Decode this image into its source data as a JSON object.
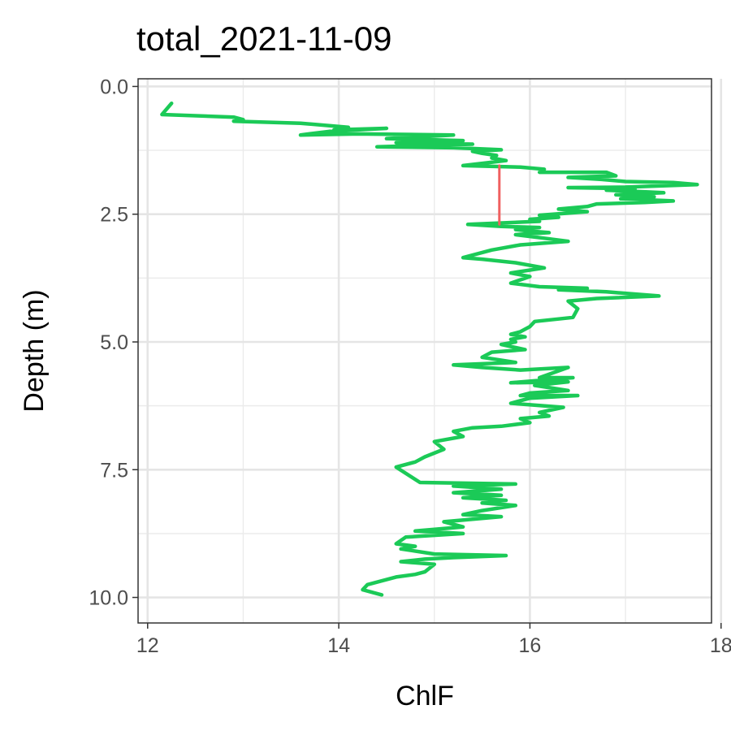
{
  "chart_data": {
    "type": "line",
    "title": "total_2021-11-09",
    "xlabel": "ChlF",
    "ylabel": "Depth (m)",
    "xlim": [
      11.9,
      17.9
    ],
    "ylim": [
      10.5,
      -0.15
    ],
    "y_reversed": true,
    "grid": true,
    "legend": "none",
    "x_ticks": [
      12,
      14,
      16,
      18
    ],
    "x_tick_labels": [
      "12",
      "14",
      "16",
      "18"
    ],
    "y_ticks": [
      0.0,
      2.5,
      5.0,
      7.5,
      10.0
    ],
    "y_tick_labels": [
      "0.0",
      "2.5",
      "5.0",
      "7.5",
      "10.0"
    ],
    "series": [
      {
        "color": "#1bca57",
        "points": [
          [
            12.25,
            0.33
          ],
          [
            12.15,
            0.55
          ],
          [
            12.9,
            0.6
          ],
          [
            13.0,
            0.65
          ],
          [
            12.9,
            0.68
          ],
          [
            13.6,
            0.72
          ],
          [
            14.1,
            0.8
          ],
          [
            13.95,
            0.85
          ],
          [
            14.5,
            0.82
          ],
          [
            13.9,
            0.88
          ],
          [
            13.6,
            0.95
          ],
          [
            14.2,
            0.93
          ],
          [
            15.2,
            0.95
          ],
          [
            14.5,
            1.02
          ],
          [
            15.3,
            1.06
          ],
          [
            14.6,
            1.1
          ],
          [
            15.4,
            1.13
          ],
          [
            14.4,
            1.18
          ],
          [
            15.2,
            1.2
          ],
          [
            15.7,
            1.24
          ],
          [
            15.4,
            1.27
          ],
          [
            15.5,
            1.31
          ],
          [
            15.65,
            1.35
          ],
          [
            15.6,
            1.4
          ],
          [
            15.75,
            1.45
          ],
          [
            15.3,
            1.55
          ],
          [
            15.9,
            1.58
          ],
          [
            16.15,
            1.62
          ],
          [
            16.1,
            1.68
          ],
          [
            16.8,
            1.68
          ],
          [
            16.9,
            1.75
          ],
          [
            16.4,
            1.78
          ],
          [
            16.75,
            1.82
          ],
          [
            17.0,
            1.86
          ],
          [
            17.5,
            1.88
          ],
          [
            17.75,
            1.92
          ],
          [
            17.0,
            1.97
          ],
          [
            16.4,
            1.98
          ],
          [
            17.1,
            2.0
          ],
          [
            16.8,
            2.03
          ],
          [
            17.4,
            2.08
          ],
          [
            16.9,
            2.12
          ],
          [
            17.3,
            2.16
          ],
          [
            16.95,
            2.2
          ],
          [
            17.5,
            2.24
          ],
          [
            17.2,
            2.27
          ],
          [
            16.7,
            2.3
          ],
          [
            16.6,
            2.35
          ],
          [
            16.3,
            2.4
          ],
          [
            16.6,
            2.45
          ],
          [
            16.1,
            2.52
          ],
          [
            16.3,
            2.56
          ],
          [
            16.0,
            2.6
          ],
          [
            16.1,
            2.64
          ],
          [
            15.35,
            2.7
          ],
          [
            15.7,
            2.74
          ],
          [
            16.1,
            2.76
          ],
          [
            15.85,
            2.8
          ],
          [
            16.0,
            2.83
          ],
          [
            16.2,
            2.86
          ],
          [
            15.85,
            2.9
          ],
          [
            16.15,
            2.97
          ],
          [
            16.4,
            3.03
          ],
          [
            15.9,
            3.1
          ],
          [
            15.6,
            3.2
          ],
          [
            15.3,
            3.35
          ],
          [
            15.5,
            3.38
          ],
          [
            15.85,
            3.45
          ],
          [
            16.15,
            3.55
          ],
          [
            15.8,
            3.65
          ],
          [
            16.0,
            3.72
          ],
          [
            15.8,
            3.85
          ],
          [
            16.1,
            3.92
          ],
          [
            16.6,
            3.95
          ],
          [
            16.3,
            3.98
          ],
          [
            16.8,
            4.02
          ],
          [
            17.35,
            4.1
          ],
          [
            16.7,
            4.15
          ],
          [
            16.4,
            4.2
          ],
          [
            16.5,
            4.35
          ],
          [
            16.45,
            4.52
          ],
          [
            16.05,
            4.6
          ],
          [
            16.0,
            4.7
          ],
          [
            15.9,
            4.8
          ],
          [
            15.8,
            4.85
          ],
          [
            15.95,
            4.9
          ],
          [
            15.8,
            4.95
          ],
          [
            15.85,
            5.0
          ],
          [
            15.7,
            5.05
          ],
          [
            15.95,
            5.15
          ],
          [
            15.6,
            5.2
          ],
          [
            15.5,
            5.3
          ],
          [
            15.85,
            5.4
          ],
          [
            15.2,
            5.45
          ],
          [
            15.5,
            5.5
          ],
          [
            15.9,
            5.55
          ],
          [
            16.4,
            5.5
          ],
          [
            16.1,
            5.7
          ],
          [
            16.45,
            5.7
          ],
          [
            15.8,
            5.8
          ],
          [
            16.4,
            5.78
          ],
          [
            16.05,
            5.85
          ],
          [
            16.4,
            5.95
          ],
          [
            16.0,
            6.0
          ],
          [
            15.9,
            6.05
          ],
          [
            16.5,
            6.05
          ],
          [
            16.0,
            6.1
          ],
          [
            15.8,
            6.2
          ],
          [
            16.35,
            6.28
          ],
          [
            16.1,
            6.38
          ],
          [
            16.2,
            6.45
          ],
          [
            15.9,
            6.5
          ],
          [
            16.0,
            6.58
          ],
          [
            15.7,
            6.65
          ],
          [
            15.4,
            6.68
          ],
          [
            15.2,
            6.75
          ],
          [
            15.3,
            6.85
          ],
          [
            15.0,
            6.95
          ],
          [
            15.1,
            7.1
          ],
          [
            14.9,
            7.25
          ],
          [
            14.8,
            7.35
          ],
          [
            14.6,
            7.45
          ],
          [
            14.85,
            7.75
          ],
          [
            15.85,
            7.78
          ],
          [
            15.2,
            7.82
          ],
          [
            15.7,
            7.88
          ],
          [
            15.2,
            7.95
          ],
          [
            15.7,
            8.0
          ],
          [
            15.3,
            8.05
          ],
          [
            15.75,
            8.1
          ],
          [
            15.5,
            8.15
          ],
          [
            15.85,
            8.2
          ],
          [
            15.5,
            8.3
          ],
          [
            15.3,
            8.38
          ],
          [
            15.7,
            8.42
          ],
          [
            15.1,
            8.52
          ],
          [
            15.3,
            8.62
          ],
          [
            14.8,
            8.7
          ],
          [
            15.3,
            8.75
          ],
          [
            14.7,
            8.82
          ],
          [
            14.6,
            8.95
          ],
          [
            14.8,
            9.0
          ],
          [
            14.65,
            9.05
          ],
          [
            15.0,
            9.15
          ],
          [
            15.75,
            9.18
          ],
          [
            15.2,
            9.22
          ],
          [
            14.9,
            9.25
          ],
          [
            14.65,
            9.3
          ],
          [
            15.0,
            9.35
          ],
          [
            14.9,
            9.5
          ],
          [
            14.8,
            9.55
          ],
          [
            14.6,
            9.6
          ],
          [
            14.3,
            9.75
          ],
          [
            14.25,
            9.85
          ],
          [
            14.45,
            9.95
          ]
        ]
      },
      {
        "color": "#f06060",
        "points": [
          [
            15.68,
            1.55
          ],
          [
            15.68,
            2.7
          ]
        ]
      }
    ]
  }
}
